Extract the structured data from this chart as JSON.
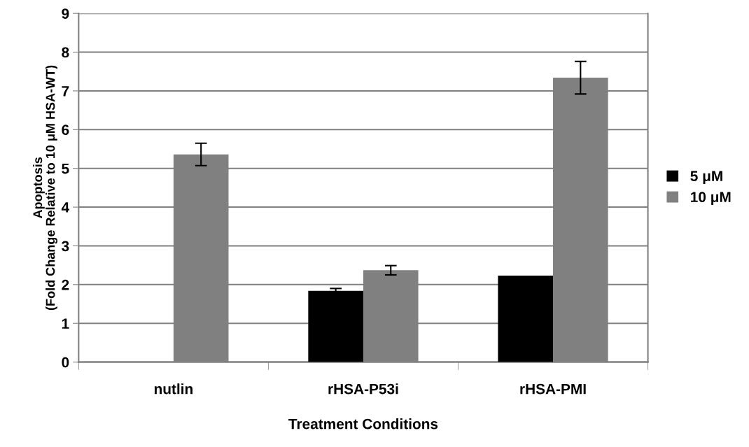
{
  "chart_data": {
    "type": "bar",
    "xlabel": "Treatment Conditions",
    "ylabel": "Apoptosis\n(Fold Change Relative to 10 μM HSA-WT)",
    "categories": [
      "nutlin",
      "rHSA-P53i",
      "rHSA-PMI"
    ],
    "series": [
      {
        "name": "5 μM",
        "color": "#000000",
        "values": [
          null,
          1.84,
          2.23
        ],
        "errors": [
          null,
          0.06,
          null
        ]
      },
      {
        "name": "10 μM",
        "color": "#808080",
        "values": [
          5.36,
          2.37,
          7.34
        ],
        "errors": [
          0.29,
          0.12,
          0.42
        ]
      }
    ],
    "ylim": [
      0,
      9
    ],
    "yticks": [
      0,
      1,
      2,
      3,
      4,
      5,
      6,
      7,
      8,
      9
    ],
    "grid": "y",
    "legend": "right"
  }
}
